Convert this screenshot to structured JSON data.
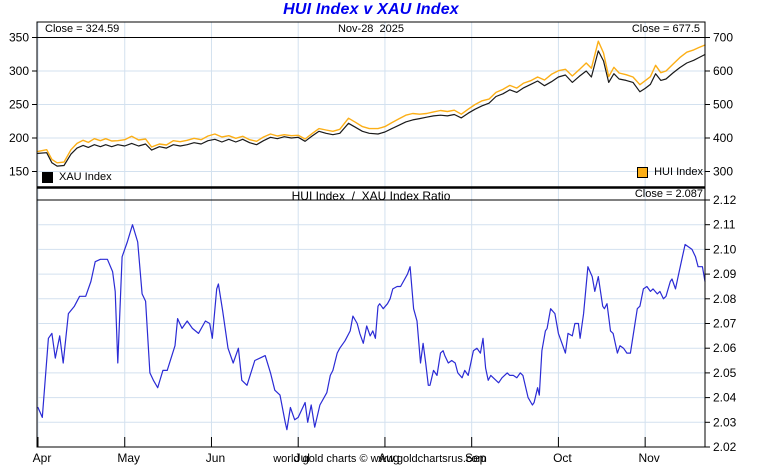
{
  "title": "HUI Index v XAU Index",
  "footer": "world gold charts © www.goldchartsrus.com",
  "colors": {
    "title": "#0000EE",
    "xau_line": "#1A1A1A",
    "hui_line": "#FCAF17",
    "ratio_line": "#2B2BD5",
    "grid": "#D3E1EF",
    "separator": "#000000",
    "background": "#FFFFFF"
  },
  "top_panel": {
    "close_xau_label": "Close = 324.59",
    "date_label": "Nov-28  2025",
    "close_hui_label": "Close = 677.5",
    "legend": [
      {
        "label": "XAU Index",
        "color": "#000000"
      },
      {
        "label": "HUI Index",
        "color": "#FCAF17"
      }
    ]
  },
  "bottom_panel": {
    "title": "HUI Index  /  XAU Index Ratio",
    "close_ratio_label": "Close = 2.087"
  },
  "x_axis": {
    "tick_labels": [
      "Apr",
      "May",
      "Jun",
      "Jul",
      "Aug",
      "Sep",
      "Oct",
      "Nov"
    ],
    "note": "x in months since Apr 1 2025; 0=Apr ... 7=Nov; series end 7.69 = Nov-28 2025"
  },
  "chart_data": [
    {
      "panel": "top",
      "type": "line",
      "title": "HUI Index v XAU Index",
      "grid": true,
      "legend_position": "bottom-inside",
      "x_ticks": [
        "Apr",
        "May",
        "Jun",
        "Jul",
        "Aug",
        "Sep",
        "Oct",
        "Nov"
      ],
      "left_axis": {
        "series": "XAU Index",
        "ticks": [
          150,
          200,
          250,
          300,
          350
        ],
        "range": [
          128,
          370
        ]
      },
      "right_axis": {
        "series": "HUI Index",
        "ticks": [
          300,
          400,
          500,
          600,
          700
        ],
        "range": [
          256,
          740
        ]
      },
      "series": [
        {
          "name": "XAU Index",
          "axis": "left",
          "color": "#1A1A1A",
          "close": 324.59,
          "x": [
            0,
            0.1,
            0.16,
            0.22,
            0.3,
            0.38,
            0.45,
            0.52,
            0.58,
            0.65,
            0.72,
            0.78,
            0.85,
            0.92,
            1.0,
            1.08,
            1.16,
            1.24,
            1.31,
            1.4,
            1.48,
            1.56,
            1.64,
            1.72,
            1.8,
            1.88,
            1.96,
            2.04,
            2.12,
            2.2,
            2.28,
            2.36,
            2.44,
            2.52,
            2.6,
            2.68,
            2.76,
            2.84,
            2.92,
            3.0,
            3.08,
            3.16,
            3.24,
            3.32,
            3.4,
            3.48,
            3.58,
            3.66,
            3.74,
            3.82,
            3.92,
            4.0,
            4.08,
            4.16,
            4.24,
            4.32,
            4.4,
            4.48,
            4.56,
            4.64,
            4.72,
            4.8,
            4.88,
            4.96,
            5.04,
            5.12,
            5.2,
            5.28,
            5.36,
            5.44,
            5.52,
            5.6,
            5.68,
            5.76,
            5.84,
            5.92,
            6.0,
            6.08,
            6.16,
            6.24,
            6.32,
            6.38,
            6.46,
            6.52,
            6.58,
            6.64,
            6.7,
            6.78,
            6.86,
            6.94,
            7.0,
            7.06,
            7.12,
            7.18,
            7.24,
            7.32,
            7.4,
            7.48,
            7.56,
            7.62,
            7.69
          ],
          "values": [
            177,
            178,
            163,
            158,
            159,
            176,
            185,
            189,
            186,
            190,
            187,
            190,
            187,
            190,
            188,
            192,
            188,
            191,
            182,
            187,
            185,
            190,
            188,
            190,
            193,
            191,
            196,
            198,
            194,
            198,
            194,
            198,
            193,
            190,
            196,
            201,
            199,
            202,
            200,
            201,
            195,
            203,
            210,
            207,
            205,
            207,
            222,
            216,
            210,
            207,
            206,
            209,
            214,
            219,
            224,
            227,
            229,
            231,
            233,
            234,
            233,
            235,
            230,
            237,
            243,
            248,
            252,
            262,
            266,
            272,
            268,
            275,
            280,
            285,
            278,
            284,
            291,
            294,
            283,
            292,
            300,
            291,
            330,
            315,
            283,
            296,
            288,
            286,
            283,
            269,
            274,
            280,
            296,
            286,
            288,
            297,
            305,
            312,
            316,
            320,
            324.59
          ]
        },
        {
          "name": "HUI Index",
          "axis": "right",
          "color": "#FCAF17",
          "close": 677.5,
          "x": [
            0,
            0.1,
            0.16,
            0.22,
            0.3,
            0.38,
            0.45,
            0.52,
            0.58,
            0.65,
            0.72,
            0.78,
            0.85,
            0.92,
            1.0,
            1.08,
            1.16,
            1.24,
            1.31,
            1.4,
            1.48,
            1.56,
            1.64,
            1.72,
            1.8,
            1.88,
            1.96,
            2.04,
            2.12,
            2.2,
            2.28,
            2.36,
            2.44,
            2.52,
            2.6,
            2.68,
            2.76,
            2.84,
            2.92,
            3.0,
            3.08,
            3.16,
            3.24,
            3.32,
            3.4,
            3.48,
            3.58,
            3.66,
            3.74,
            3.82,
            3.92,
            4.0,
            4.08,
            4.16,
            4.24,
            4.32,
            4.4,
            4.48,
            4.56,
            4.64,
            4.72,
            4.8,
            4.88,
            4.96,
            5.04,
            5.12,
            5.2,
            5.28,
            5.36,
            5.44,
            5.52,
            5.6,
            5.68,
            5.76,
            5.84,
            5.92,
            6.0,
            6.08,
            6.16,
            6.24,
            6.32,
            6.38,
            6.46,
            6.52,
            6.58,
            6.64,
            6.7,
            6.78,
            6.86,
            6.94,
            7.0,
            7.06,
            7.12,
            7.18,
            7.24,
            7.32,
            7.4,
            7.48,
            7.56,
            7.62,
            7.69
          ],
          "values": [
            360,
            365,
            336,
            326,
            328,
            365,
            384,
            393,
            387,
            398,
            392,
            398,
            391,
            392,
            395,
            405,
            394,
            397,
            373,
            382,
            379,
            392,
            389,
            393,
            399,
            395,
            406,
            412,
            403,
            407,
            399,
            405,
            395,
            390,
            403,
            412,
            406,
            410,
            407,
            408,
            397,
            413,
            428,
            424,
            420,
            426,
            459,
            447,
            434,
            428,
            428,
            434,
            446,
            457,
            468,
            473,
            471,
            473,
            478,
            482,
            479,
            483,
            471,
            486,
            500,
            511,
            516,
            536,
            545,
            557,
            549,
            564,
            571,
            582,
            573,
            590,
            601,
            605,
            585,
            604,
            624,
            608,
            689,
            654,
            583,
            611,
            594,
            589,
            582,
            559,
            571,
            583,
            617,
            595,
            600,
            620,
            640,
            656,
            663,
            670,
            677.5
          ]
        }
      ]
    },
    {
      "panel": "bottom",
      "type": "line",
      "title": "HUI Index  /  XAU Index Ratio",
      "grid": true,
      "x_ticks": [
        "Apr",
        "May",
        "Jun",
        "Jul",
        "Aug",
        "Sep",
        "Oct",
        "Nov"
      ],
      "right_axis": {
        "series": "HUI/XAU Ratio",
        "ticks": [
          2.02,
          2.03,
          2.04,
          2.05,
          2.06,
          2.07,
          2.08,
          2.09,
          2.1,
          2.11,
          2.12
        ],
        "range": [
          2.02,
          2.125
        ]
      },
      "series": [
        {
          "name": "HUI/XAU Ratio",
          "axis": "right",
          "color": "#2B2BD5",
          "close": 2.087,
          "x": [
            0.0,
            0.05,
            0.12,
            0.16,
            0.2,
            0.25,
            0.29,
            0.35,
            0.42,
            0.48,
            0.55,
            0.61,
            0.66,
            0.72,
            0.8,
            0.86,
            0.89,
            0.92,
            0.97,
            1.03,
            1.09,
            1.15,
            1.2,
            1.24,
            1.29,
            1.33,
            1.38,
            1.44,
            1.49,
            1.58,
            1.61,
            1.66,
            1.72,
            1.78,
            1.85,
            1.93,
            1.98,
            2.01,
            2.06,
            2.08,
            2.13,
            2.19,
            2.25,
            2.31,
            2.35,
            2.41,
            2.5,
            2.56,
            2.62,
            2.68,
            2.73,
            2.79,
            2.85,
            2.87,
            2.91,
            2.96,
            3.0,
            3.08,
            3.11,
            3.15,
            3.19,
            3.25,
            3.33,
            3.37,
            3.4,
            3.45,
            3.48,
            3.54,
            3.6,
            3.63,
            3.68,
            3.71,
            3.75,
            3.79,
            3.83,
            3.86,
            3.89,
            3.92,
            3.94,
            3.98,
            4.03,
            4.06,
            4.09,
            4.14,
            4.18,
            4.26,
            4.29,
            4.33,
            4.37,
            4.41,
            4.44,
            4.47,
            4.5,
            4.52,
            4.56,
            4.6,
            4.64,
            4.67,
            4.69,
            4.73,
            4.77,
            4.81,
            4.84,
            4.89,
            4.92,
            4.96,
            5.02,
            5.06,
            5.1,
            5.13,
            5.16,
            5.19,
            5.22,
            5.31,
            5.35,
            5.41,
            5.44,
            5.48,
            5.52,
            5.56,
            5.59,
            5.65,
            5.7,
            5.72,
            5.76,
            5.78,
            5.81,
            5.85,
            5.87,
            5.91,
            5.96,
            6.0,
            6.05,
            6.08,
            6.11,
            6.16,
            6.19,
            6.23,
            6.25,
            6.29,
            6.34,
            6.39,
            6.42,
            6.46,
            6.51,
            6.53,
            6.56,
            6.6,
            6.63,
            6.68,
            6.71,
            6.75,
            6.79,
            6.83,
            6.91,
            6.94,
            6.98,
            7.02,
            7.06,
            7.09,
            7.14,
            7.17,
            7.21,
            7.24,
            7.29,
            7.31,
            7.35,
            7.38,
            7.43,
            7.46,
            7.5,
            7.54,
            7.58,
            7.61,
            7.66,
            7.69
          ],
          "values": [
            2.036,
            2.032,
            2.064,
            2.066,
            2.056,
            2.065,
            2.054,
            2.074,
            2.077,
            2.081,
            2.081,
            2.087,
            2.095,
            2.096,
            2.096,
            2.091,
            2.083,
            2.054,
            2.097,
            2.103,
            2.11,
            2.103,
            2.082,
            2.079,
            2.05,
            2.047,
            2.044,
            2.051,
            2.051,
            2.061,
            2.072,
            2.068,
            2.071,
            2.068,
            2.066,
            2.071,
            2.07,
            2.064,
            2.084,
            2.086,
            2.075,
            2.06,
            2.054,
            2.06,
            2.047,
            2.045,
            2.055,
            2.056,
            2.057,
            2.05,
            2.043,
            2.041,
            2.03,
            2.027,
            2.036,
            2.031,
            2.032,
            2.038,
            2.03,
            2.037,
            2.028,
            2.037,
            2.042,
            2.049,
            2.051,
            2.058,
            2.06,
            2.063,
            2.067,
            2.073,
            2.07,
            2.066,
            2.062,
            2.069,
            2.065,
            2.067,
            2.064,
            2.077,
            2.078,
            2.076,
            2.078,
            2.08,
            2.084,
            2.085,
            2.085,
            2.09,
            2.093,
            2.076,
            2.071,
            2.054,
            2.062,
            2.054,
            2.045,
            2.045,
            2.051,
            2.049,
            2.058,
            2.059,
            2.057,
            2.054,
            2.055,
            2.054,
            2.05,
            2.048,
            2.051,
            2.049,
            2.059,
            2.06,
            2.058,
            2.064,
            2.052,
            2.047,
            2.049,
            2.046,
            2.048,
            2.05,
            2.049,
            2.049,
            2.048,
            2.05,
            2.049,
            2.04,
            2.037,
            2.038,
            2.044,
            2.041,
            2.059,
            2.067,
            2.068,
            2.076,
            2.074,
            2.066,
            2.061,
            2.058,
            2.066,
            2.065,
            2.07,
            2.07,
            2.064,
            2.074,
            2.093,
            2.089,
            2.083,
            2.089,
            2.077,
            2.076,
            2.078,
            2.067,
            2.066,
            2.058,
            2.061,
            2.06,
            2.058,
            2.058,
            2.076,
            2.077,
            2.084,
            2.085,
            2.083,
            2.084,
            2.082,
            2.083,
            2.08,
            2.081,
            2.087,
            2.088,
            2.084,
            2.089,
            2.097,
            2.102,
            2.101,
            2.1,
            2.097,
            2.093,
            2.093,
            2.087
          ]
        }
      ]
    }
  ]
}
